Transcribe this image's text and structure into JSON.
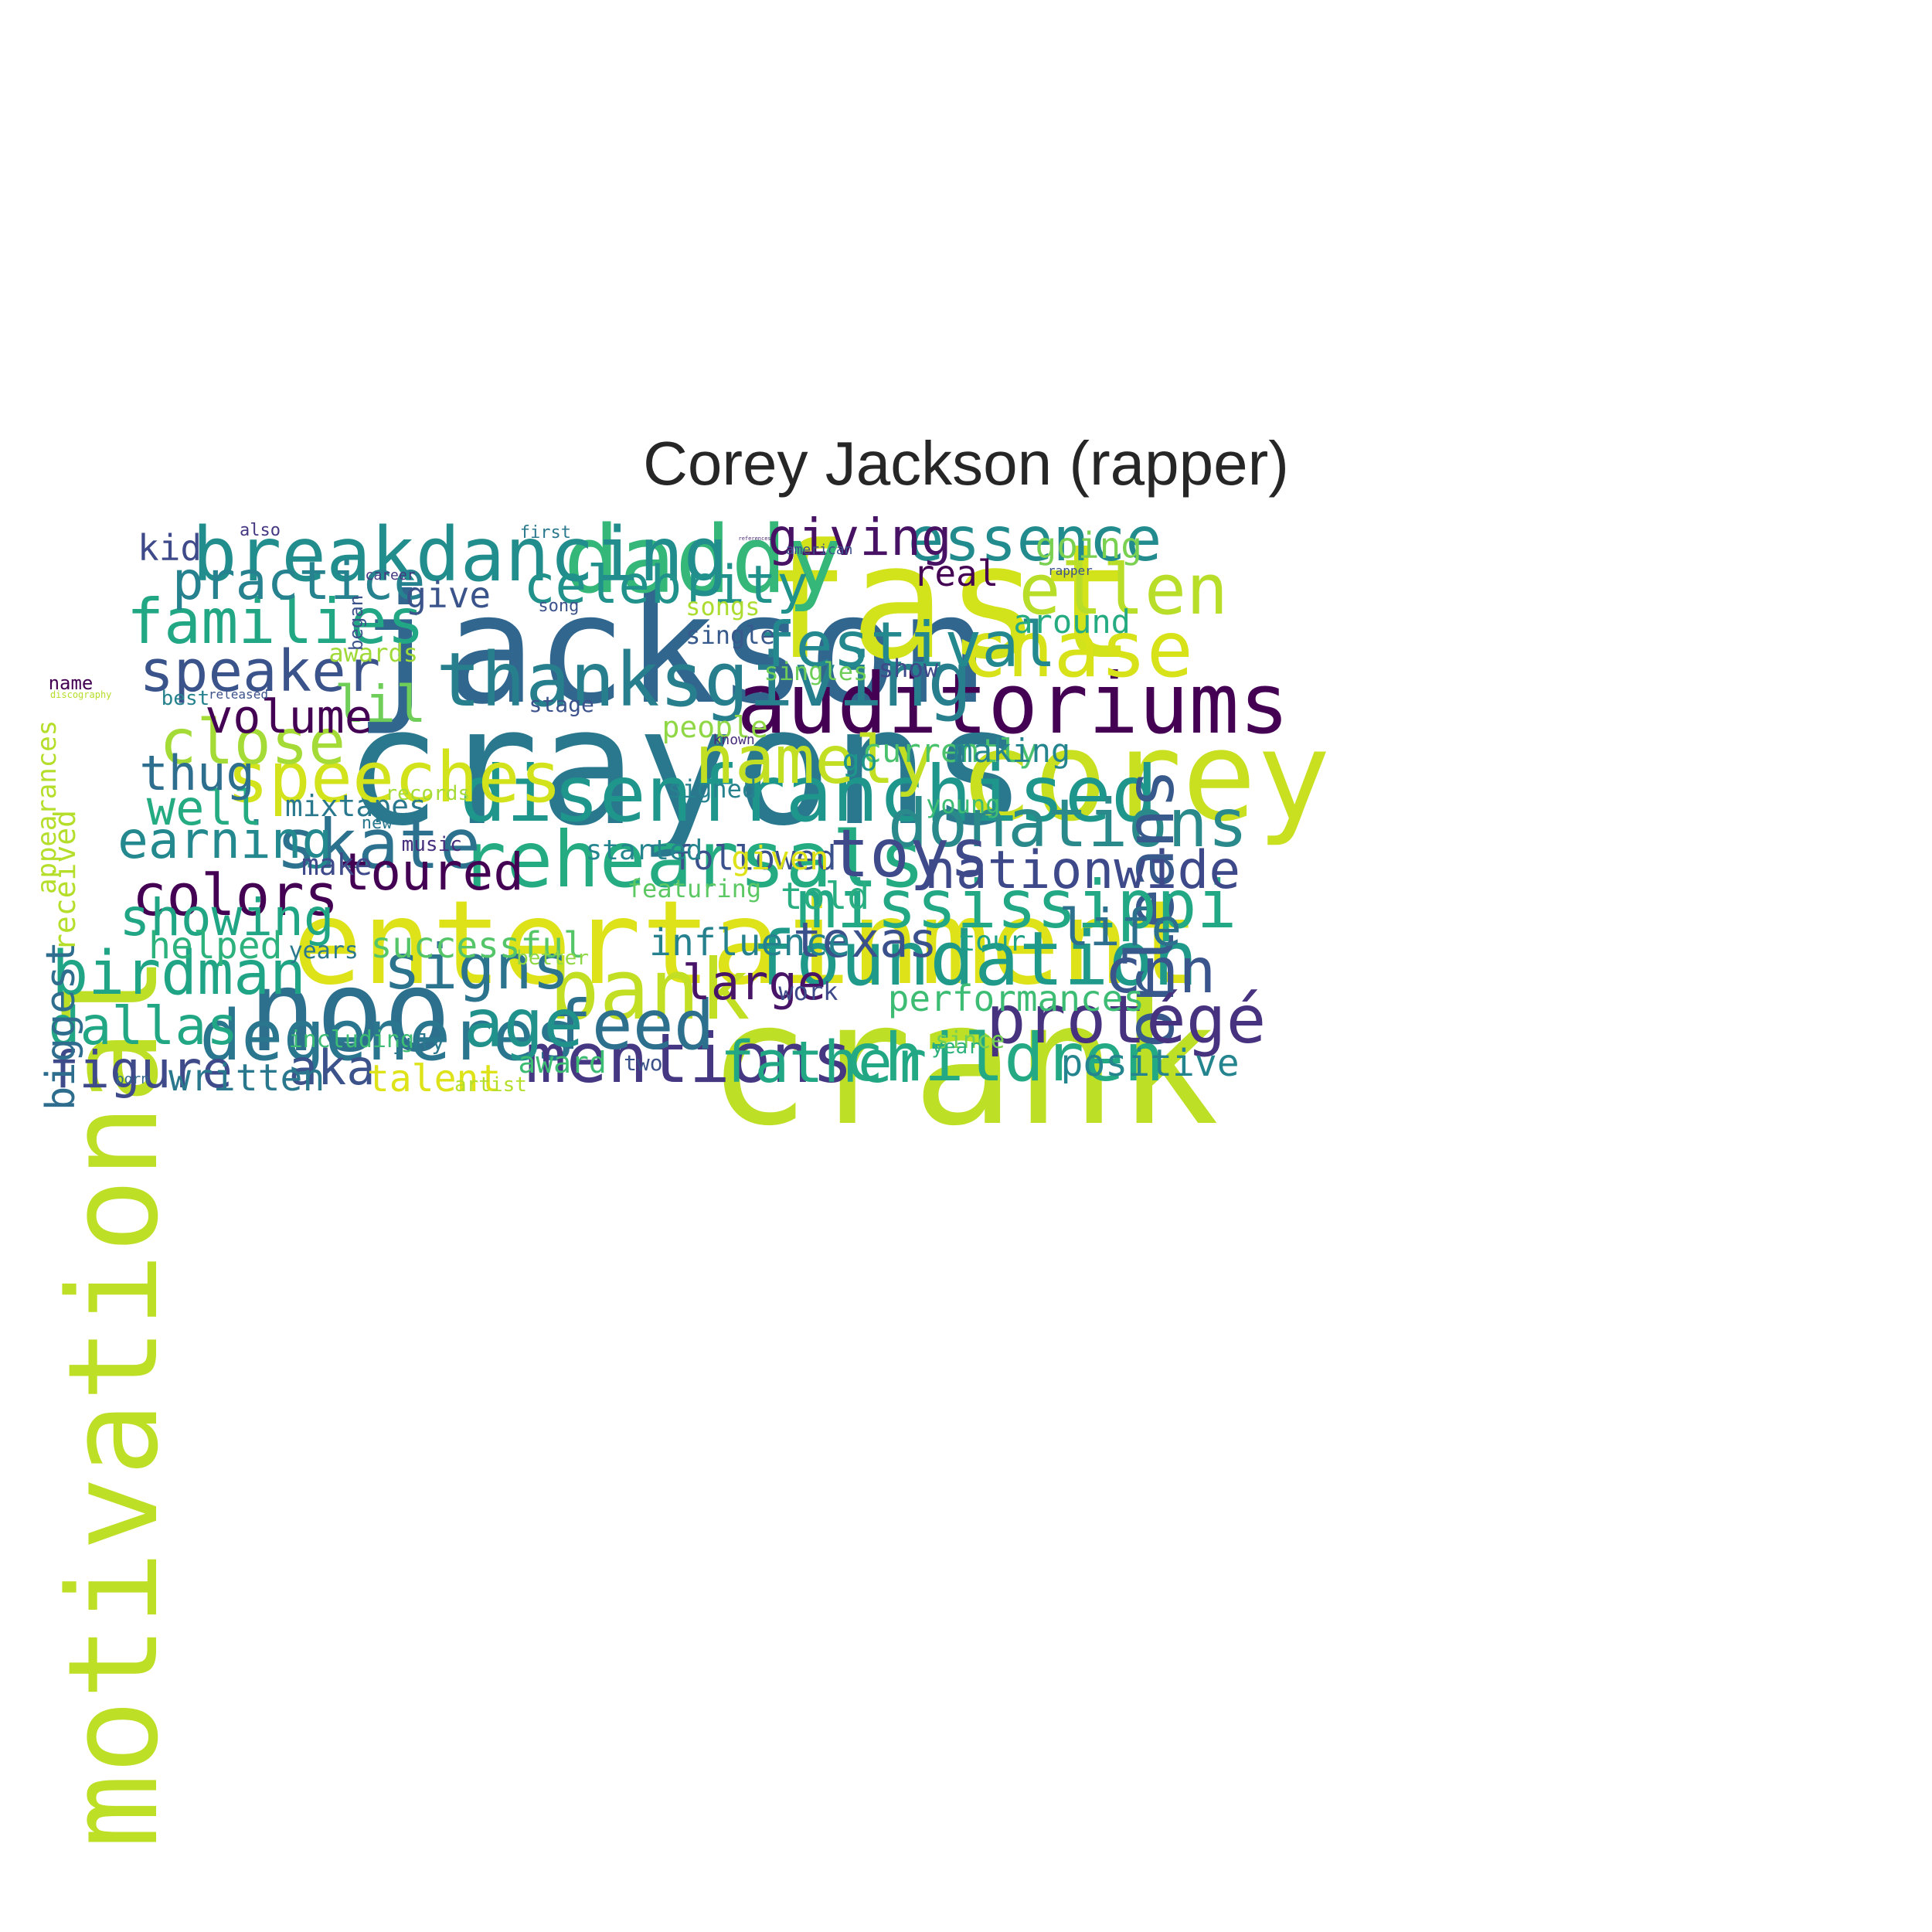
{
  "title": "Corey Jackson (rapper)",
  "palette": {
    "v0": "#440154",
    "v1": "#482878",
    "v2": "#3e4a89",
    "v3": "#31688e",
    "v4": "#26828e",
    "v5": "#1f9e89",
    "v6": "#35b779",
    "v7": "#6ece58",
    "v8": "#b5de2b",
    "v9": "#dae319"
  },
  "words": [
    {
      "text": "crank",
      "weight": 1.0,
      "color": "#bddf26",
      "angle": 0
    },
    {
      "text": "crayons",
      "weight": 0.95,
      "color": "#2a788e",
      "angle": 0
    },
    {
      "text": "jackson",
      "weight": 0.9,
      "color": "#31668e",
      "angle": 0
    },
    {
      "text": "fast",
      "weight": 0.95,
      "color": "#d2e21b",
      "angle": 0
    },
    {
      "text": "corey",
      "weight": 0.82,
      "color": "#c8e020",
      "angle": 0
    },
    {
      "text": "motivational",
      "weight": 0.77,
      "color": "#bddf26",
      "angle": -90
    },
    {
      "text": "entertainment",
      "weight": 0.77,
      "color": "#dde318",
      "angle": 0
    },
    {
      "text": "noo",
      "weight": 0.74,
      "color": "#2d708e",
      "angle": 0
    },
    {
      "text": "daddy",
      "weight": 0.64,
      "color": "#35b779",
      "angle": 0
    },
    {
      "text": "auditoriums",
      "weight": 0.6,
      "color": "#440154",
      "angle": 0
    },
    {
      "text": "disenfranchised",
      "weight": 0.58,
      "color": "#1f968b",
      "angle": 0
    },
    {
      "text": "rehearsals",
      "weight": 0.58,
      "color": "#25ab82",
      "angle": 0
    },
    {
      "text": "bank",
      "weight": 0.58,
      "color": "#c2df23",
      "angle": 0
    },
    {
      "text": "chase",
      "weight": 0.58,
      "color": "#d8e219",
      "angle": 0
    },
    {
      "text": "breakdancing",
      "weight": 0.54,
      "color": "#228d8d",
      "angle": 0
    },
    {
      "text": "thanksgiving",
      "weight": 0.54,
      "color": "#277f8e",
      "angle": 0
    },
    {
      "text": "foundation",
      "weight": 0.54,
      "color": "#1f9a8a",
      "angle": 0
    },
    {
      "text": "degeneres",
      "weight": 0.52,
      "color": "#2a768e",
      "angle": 0
    },
    {
      "text": "speeches",
      "weight": 0.52,
      "color": "#d2e21b",
      "angle": 0
    },
    {
      "text": "ellen",
      "weight": 0.52,
      "color": "#b8de29",
      "angle": 0
    },
    {
      "text": "skate",
      "weight": 0.5,
      "color": "#2c728e",
      "angle": 0
    },
    {
      "text": "mentions",
      "weight": 0.5,
      "color": "#453781",
      "angle": 0
    },
    {
      "text": "feed",
      "weight": 0.5,
      "color": "#2d708e",
      "angle": 0
    },
    {
      "text": "donations",
      "weight": 0.5,
      "color": "#2a8a8b",
      "angle": 0
    },
    {
      "text": "orleans",
      "weight": 0.45,
      "color": "#38598c",
      "angle": -90
    },
    {
      "text": "mississippi",
      "weight": 0.48,
      "color": "#22a884",
      "angle": 0
    },
    {
      "text": "children",
      "weight": 0.48,
      "color": "#23a983",
      "angle": 0
    },
    {
      "text": "toys",
      "weight": 0.48,
      "color": "#3e4a89",
      "angle": 0
    },
    {
      "text": "protégé",
      "weight": 0.48,
      "color": "#46327e",
      "angle": 0
    },
    {
      "text": "namely",
      "weight": 0.48,
      "color": "#c2df23",
      "angle": 0
    },
    {
      "text": "age",
      "weight": 0.46,
      "color": "#21918c",
      "angle": 0
    },
    {
      "text": "close",
      "weight": 0.46,
      "color": "#a5db36",
      "angle": 0
    },
    {
      "text": "festival",
      "weight": 0.46,
      "color": "#23898e",
      "angle": 0
    },
    {
      "text": "families",
      "weight": 0.46,
      "color": "#22a785",
      "angle": 0
    },
    {
      "text": "signs",
      "weight": 0.46,
      "color": "#2c738e",
      "angle": 0
    },
    {
      "text": "cnn",
      "weight": 0.46,
      "color": "#39558c",
      "angle": 0
    },
    {
      "text": "essence",
      "weight": 0.44,
      "color": "#228b8d",
      "angle": 0
    },
    {
      "text": "birdman",
      "weight": 0.44,
      "color": "#20a486",
      "angle": 0
    },
    {
      "text": "speaker",
      "weight": 0.42,
      "color": "#3a538b",
      "angle": 0
    },
    {
      "text": "colors",
      "weight": 0.42,
      "color": "#440154",
      "angle": 0
    },
    {
      "text": "father",
      "weight": 0.42,
      "color": "#22a785",
      "angle": 0
    },
    {
      "text": "celebrity",
      "weight": 0.4,
      "color": "#21918c",
      "angle": 0
    },
    {
      "text": "practice",
      "weight": 0.4,
      "color": "#26828e",
      "angle": 0
    },
    {
      "text": "dallas",
      "weight": 0.4,
      "color": "#22a785",
      "angle": 0
    },
    {
      "text": "nationwide",
      "weight": 0.4,
      "color": "#3e4989",
      "angle": 0
    },
    {
      "text": "giving",
      "weight": 0.38,
      "color": "#471164",
      "angle": 0
    },
    {
      "text": "figure",
      "weight": 0.38,
      "color": "#3e4a89",
      "angle": 0
    },
    {
      "text": "life",
      "weight": 0.38,
      "color": "#2d708e",
      "angle": 0
    },
    {
      "text": "earning",
      "weight": 0.38,
      "color": "#23898e",
      "angle": 0
    },
    {
      "text": "toured",
      "weight": 0.38,
      "color": "#440154",
      "angle": 0
    },
    {
      "text": "showing",
      "weight": 0.38,
      "color": "#21a685",
      "angle": 0
    },
    {
      "text": "lil",
      "weight": 0.38,
      "color": "#6ece58",
      "angle": 0
    },
    {
      "text": "large",
      "weight": 0.36,
      "color": "#481467",
      "angle": 0
    },
    {
      "text": "well",
      "weight": 0.36,
      "color": "#25ab82",
      "angle": 0
    },
    {
      "text": "thug",
      "weight": 0.36,
      "color": "#2e6e8e",
      "angle": 0
    },
    {
      "text": "aka",
      "weight": 0.36,
      "color": "#3b528b",
      "angle": 0
    },
    {
      "text": "texas",
      "weight": 0.36,
      "color": "#3b518b",
      "angle": 0
    },
    {
      "text": "volume",
      "weight": 0.35,
      "color": "#440154",
      "angle": 0
    },
    {
      "text": "biggest",
      "weight": 0.3,
      "color": "#2e6d8e",
      "angle": -90
    },
    {
      "text": "influence",
      "weight": 0.28,
      "color": "#26818e",
      "angle": 0
    },
    {
      "text": "performances",
      "weight": 0.27,
      "color": "#3dbc74",
      "angle": 0
    },
    {
      "text": "positive",
      "weight": 0.28,
      "color": "#25858e",
      "angle": 0
    },
    {
      "text": "written",
      "weight": 0.28,
      "color": "#2a788e",
      "angle": 0
    },
    {
      "text": "talent",
      "weight": 0.28,
      "color": "#dde318",
      "angle": 0
    },
    {
      "text": "helped",
      "weight": 0.28,
      "color": "#2db27d",
      "angle": 0
    },
    {
      "text": "successful",
      "weight": 0.27,
      "color": "#54c568",
      "angle": 0
    },
    {
      "text": "told",
      "weight": 0.28,
      "color": "#28ae80",
      "angle": 0
    },
    {
      "text": "real",
      "weight": 0.28,
      "color": "#440154",
      "angle": 0
    },
    {
      "text": "going",
      "weight": 0.27,
      "color": "#7ad151",
      "angle": 0
    },
    {
      "text": "kid",
      "weight": 0.27,
      "color": "#3e4a89",
      "angle": 0
    },
    {
      "text": "give",
      "weight": 0.27,
      "color": "#3a538b",
      "angle": 0
    },
    {
      "text": "followed",
      "weight": 0.26,
      "color": "#3b518b",
      "angle": 0
    },
    {
      "text": "around",
      "weight": 0.25,
      "color": "#25ab82",
      "angle": 0
    },
    {
      "text": "currently",
      "weight": 0.25,
      "color": "#4ac16d",
      "angle": 0
    },
    {
      "text": "making",
      "weight": 0.25,
      "color": "#25858e",
      "angle": 0
    },
    {
      "text": "given",
      "weight": 0.25,
      "color": "#dde318",
      "angle": 0
    },
    {
      "text": "received",
      "weight": 0.23,
      "color": "#b5de2b",
      "angle": -90
    },
    {
      "text": "appearances",
      "weight": 0.2,
      "color": "#b5de2b",
      "angle": -90
    },
    {
      "text": "people",
      "weight": 0.22,
      "color": "#8fd744",
      "angle": 0
    },
    {
      "text": "mixtapes",
      "weight": 0.22,
      "color": "#2a788e",
      "angle": 0
    },
    {
      "text": "started",
      "weight": 0.21,
      "color": "#25858e",
      "angle": 0
    },
    {
      "text": "make",
      "weight": 0.22,
      "color": "#3e4a89",
      "angle": 0
    },
    {
      "text": "award",
      "weight": 0.22,
      "color": "#3dbc74",
      "angle": 0
    },
    {
      "text": "tour",
      "weight": 0.21,
      "color": "#1fa187",
      "angle": 0
    },
    {
      "text": "go",
      "weight": 0.22,
      "color": "#1f968b",
      "angle": 0
    },
    {
      "text": "singles",
      "weight": 0.19,
      "color": "#6ece58",
      "angle": 0
    },
    {
      "text": "songs",
      "weight": 0.19,
      "color": "#addc30",
      "angle": 0
    },
    {
      "text": "awards",
      "weight": 0.19,
      "color": "#a0da39",
      "angle": 0
    },
    {
      "text": "show",
      "weight": 0.19,
      "color": "#3e4989",
      "angle": 0
    },
    {
      "text": "single",
      "weight": 0.19,
      "color": "#38598c",
      "angle": 0
    },
    {
      "text": "signed",
      "weight": 0.19,
      "color": "#26828e",
      "angle": 0
    },
    {
      "text": "young",
      "weight": 0.19,
      "color": "#3dbc74",
      "angle": 0
    },
    {
      "text": "featuring",
      "weight": 0.19,
      "color": "#5cc863",
      "angle": 0
    },
    {
      "text": "including",
      "weight": 0.18,
      "color": "#3dbc74",
      "angle": 0
    },
    {
      "text": "since",
      "weight": 0.18,
      "color": "#73d056",
      "angle": 0
    },
    {
      "text": "work",
      "weight": 0.19,
      "color": "#3e4a89",
      "angle": 0
    },
    {
      "text": "years",
      "weight": 0.18,
      "color": "#2a788e",
      "angle": 0
    },
    {
      "text": "stage",
      "weight": 0.17,
      "color": "#3b528b",
      "angle": 0
    },
    {
      "text": "july",
      "weight": 0.17,
      "color": "#2a788e",
      "angle": 0
    },
    {
      "text": "two",
      "weight": 0.17,
      "color": "#3b528b",
      "angle": 0
    },
    {
      "text": "better",
      "weight": 0.16,
      "color": "#8fd744",
      "angle": 0
    },
    {
      "text": "records",
      "weight": 0.16,
      "color": "#a5db36",
      "angle": 0
    },
    {
      "text": "artist",
      "weight": 0.16,
      "color": "#b5de2b",
      "angle": 0
    },
    {
      "text": "best",
      "weight": 0.16,
      "color": "#26828e",
      "angle": 0
    },
    {
      "text": "music",
      "weight": 0.16,
      "color": "#46307e",
      "angle": 0
    },
    {
      "text": "year",
      "weight": 0.16,
      "color": "#2db27d",
      "angle": 0
    },
    {
      "text": "began",
      "weight": 0.15,
      "color": "#3b528b",
      "angle": -90
    },
    {
      "text": "name",
      "weight": 0.15,
      "color": "#440154",
      "angle": 0
    },
    {
      "text": "song",
      "weight": 0.14,
      "color": "#3b528b",
      "angle": 0
    },
    {
      "text": "new",
      "weight": 0.14,
      "color": "#2a788e",
      "angle": 0
    },
    {
      "text": "first",
      "weight": 0.13,
      "color": "#2a788e",
      "angle": 0
    },
    {
      "text": "also",
      "weight": 0.13,
      "color": "#453781",
      "angle": 0
    },
    {
      "text": "career",
      "weight": 0.11,
      "color": "#453781",
      "angle": 0
    },
    {
      "text": "american",
      "weight": 0.11,
      "color": "#3b528b",
      "angle": 0
    },
    {
      "text": "known",
      "weight": 0.11,
      "color": "#472d7b",
      "angle": 0
    },
    {
      "text": "born",
      "weight": 0.11,
      "color": "#31688e",
      "angle": 0
    },
    {
      "text": "released",
      "weight": 0.1,
      "color": "#3b528b",
      "angle": 0
    },
    {
      "text": "rapper",
      "weight": 0.09,
      "color": "#3b528b",
      "angle": 0
    },
    {
      "text": "discography",
      "weight": 0.06,
      "color": "#b5de2b",
      "angle": 0
    },
    {
      "text": "references",
      "weight": 0.04,
      "color": "#482878",
      "angle": 0
    }
  ]
}
